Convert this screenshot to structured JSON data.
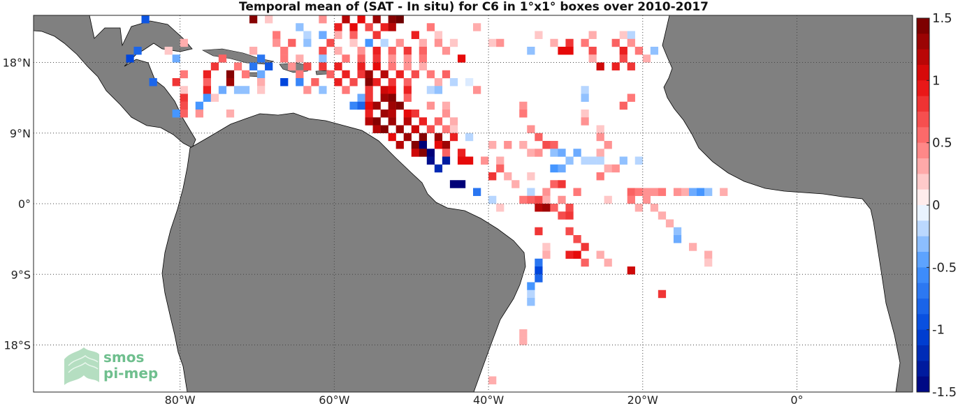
{
  "title": "Temporal mean of (SAT - In situ) for C6 in 1°x1° boxes over 2010-2017",
  "logo": {
    "line1": "smos",
    "line2": "pi-mep"
  },
  "chart_data": {
    "type": "heatmap",
    "title": "Temporal mean of (SAT - In situ) for C6 in 1°x1° boxes over 2010-2017",
    "xlim": [
      -99,
      15
    ],
    "ylim": [
      -24,
      24
    ],
    "x_ticks": [
      {
        "value": -80,
        "label": "80°W"
      },
      {
        "value": -60,
        "label": "60°W"
      },
      {
        "value": -40,
        "label": "40°W"
      },
      {
        "value": -20,
        "label": "20°W"
      },
      {
        "value": 0,
        "label": "0°"
      }
    ],
    "y_ticks": [
      {
        "value": 18,
        "label": "18°N"
      },
      {
        "value": 9,
        "label": "9°N"
      },
      {
        "value": 0,
        "label": "0°"
      },
      {
        "value": -9,
        "label": "9°S"
      },
      {
        "value": -18,
        "label": "18°S"
      }
    ],
    "grid": true,
    "colorbar": {
      "min": -1.5,
      "max": 1.5,
      "ticks": [
        {
          "value": 1.5,
          "label": "1.5"
        },
        {
          "value": 1,
          "label": "1"
        },
        {
          "value": 0.5,
          "label": "0.5"
        },
        {
          "value": 0,
          "label": "0"
        },
        {
          "value": -0.5,
          "label": "-0.5"
        },
        {
          "value": -1,
          "label": "-1"
        },
        {
          "value": -1.5,
          "label": "-1.5"
        }
      ]
    },
    "colors": {
      "land": "#808080",
      "ocean": "#ffffff",
      "grid": "#444444"
    },
    "cells": [
      [
        -71,
        23,
        1.4
      ],
      [
        -59,
        23,
        1.2
      ],
      [
        -57,
        23,
        1.0
      ],
      [
        -55,
        23,
        1.3
      ],
      [
        -53,
        23,
        1.4
      ],
      [
        -52,
        23,
        1.5
      ],
      [
        -62,
        23,
        0.4
      ],
      [
        -85,
        23,
        -0.9
      ],
      [
        -69,
        23,
        0.2
      ],
      [
        -60,
        22,
        0.9
      ],
      [
        -58,
        22,
        1.0
      ],
      [
        -56,
        22,
        0.7
      ],
      [
        -54,
        22,
        0.9
      ],
      [
        -53,
        22,
        1.2
      ],
      [
        -65,
        22,
        -0.3
      ],
      [
        -48,
        22,
        0.5
      ],
      [
        -42,
        22,
        0.3
      ],
      [
        -68,
        21,
        0.5
      ],
      [
        -64,
        21,
        -0.2
      ],
      [
        -62,
        21,
        -0.4
      ],
      [
        -60,
        21,
        0.3
      ],
      [
        -58,
        21,
        0.6
      ],
      [
        -55,
        21,
        0.8
      ],
      [
        -50,
        21,
        0.9
      ],
      [
        -47,
        21,
        0.2
      ],
      [
        -34,
        21,
        0.2
      ],
      [
        -27,
        21,
        0.3
      ],
      [
        -23,
        21,
        0.2
      ],
      [
        -22,
        21,
        -0.2
      ],
      [
        -80,
        20,
        0.3
      ],
      [
        -68,
        20,
        0.4
      ],
      [
        -66,
        20,
        0.6
      ],
      [
        -64,
        20,
        -0.3
      ],
      [
        -61,
        20,
        0.7
      ],
      [
        -58,
        20,
        0.2
      ],
      [
        -56,
        20,
        -0.5
      ],
      [
        -54,
        20,
        -0.2
      ],
      [
        -52,
        20,
        0.4
      ],
      [
        -49,
        20,
        0.3
      ],
      [
        -47,
        20,
        0.4
      ],
      [
        -45,
        20,
        0.2
      ],
      [
        -40,
        20,
        0.2
      ],
      [
        -39,
        20,
        0.4
      ],
      [
        -32,
        20,
        0.3
      ],
      [
        -30,
        20,
        0.8
      ],
      [
        -28,
        20,
        0.5
      ],
      [
        -24,
        20,
        0.6
      ],
      [
        -22,
        20,
        0.4
      ],
      [
        -86,
        19,
        -0.8
      ],
      [
        -82,
        19,
        0.2
      ],
      [
        -71,
        19,
        0.3
      ],
      [
        -67,
        19,
        0.5
      ],
      [
        -62,
        19,
        0.7
      ],
      [
        -60,
        19,
        0.3
      ],
      [
        -57,
        19,
        0.4
      ],
      [
        -55,
        19,
        0.9
      ],
      [
        -53,
        19,
        0.6
      ],
      [
        -51,
        19,
        0.8
      ],
      [
        -49,
        19,
        0.6
      ],
      [
        -46,
        19,
        0.4
      ],
      [
        -35,
        19,
        -0.3
      ],
      [
        -31,
        19,
        1.0
      ],
      [
        -30,
        19,
        1.0
      ],
      [
        -27,
        19,
        0.7
      ],
      [
        -23,
        19,
        0.9
      ],
      [
        -21,
        19,
        0.5
      ],
      [
        -19,
        19,
        -0.3
      ],
      [
        -87,
        18,
        -1.0
      ],
      [
        -81,
        18,
        -0.4
      ],
      [
        -75,
        18,
        0.6
      ],
      [
        -70,
        18,
        -0.7
      ],
      [
        -67,
        18,
        0.5
      ],
      [
        -65,
        18,
        0.3
      ],
      [
        -62,
        18,
        -0.3
      ],
      [
        -59,
        18,
        0.5
      ],
      [
        -57,
        18,
        0.6
      ],
      [
        -55,
        18,
        0.8
      ],
      [
        -53,
        18,
        0.4
      ],
      [
        -51,
        18,
        0.4
      ],
      [
        -49,
        18,
        0.5
      ],
      [
        -44,
        18,
        1.0
      ],
      [
        -27,
        18,
        0.3
      ],
      [
        -23,
        18,
        0.7
      ],
      [
        -20,
        18,
        0.3
      ],
      [
        -76,
        17,
        0.8
      ],
      [
        -73,
        17,
        0.5
      ],
      [
        -71,
        17,
        -0.7
      ],
      [
        -69,
        17,
        -0.9
      ],
      [
        -66,
        17,
        0.4
      ],
      [
        -64,
        17,
        0.7
      ],
      [
        -62,
        17,
        0.8
      ],
      [
        -60,
        17,
        0.9
      ],
      [
        -57,
        17,
        0.9
      ],
      [
        -55,
        17,
        1.0
      ],
      [
        -53,
        17,
        0.5
      ],
      [
        -51,
        17,
        0.4
      ],
      [
        -49,
        17,
        0.3
      ],
      [
        -26,
        17,
        1.1
      ],
      [
        -24,
        17,
        0.9
      ],
      [
        -22,
        17,
        0.8
      ],
      [
        -80,
        16,
        0.5
      ],
      [
        -77,
        16,
        0.9
      ],
      [
        -74,
        16,
        1.4
      ],
      [
        -72,
        16,
        0.5
      ],
      [
        -70,
        16,
        -0.4
      ],
      [
        -65,
        16,
        0.5
      ],
      [
        -61,
        16,
        0.6
      ],
      [
        -59,
        16,
        0.9
      ],
      [
        -57,
        16,
        0.8
      ],
      [
        -56,
        16,
        1.3
      ],
      [
        -54,
        16,
        1.2
      ],
      [
        -52,
        16,
        0.9
      ],
      [
        -50,
        16,
        0.7
      ],
      [
        -48,
        16,
        0.5
      ],
      [
        -46,
        16,
        0.6
      ],
      [
        -84,
        15,
        -0.8
      ],
      [
        -81,
        15,
        0.8
      ],
      [
        -77,
        15,
        0.6
      ],
      [
        -74,
        15,
        1.3
      ],
      [
        -70,
        15,
        0.3
      ],
      [
        -67,
        15,
        -1.0
      ],
      [
        -65,
        15,
        -0.6
      ],
      [
        -63,
        15,
        0.6
      ],
      [
        -60,
        15,
        0.9
      ],
      [
        -58,
        15,
        0.7
      ],
      [
        -56,
        15,
        1.4
      ],
      [
        -55,
        15,
        0.9
      ],
      [
        -53,
        15,
        0.8
      ],
      [
        -51,
        15,
        0.6
      ],
      [
        -47,
        15,
        0.3
      ],
      [
        -45,
        15,
        -0.2
      ],
      [
        -43,
        15,
        -0.1
      ],
      [
        -80,
        14,
        0.2
      ],
      [
        -77,
        14,
        0.9
      ],
      [
        -75,
        14,
        -0.4
      ],
      [
        -73,
        14,
        -0.3
      ],
      [
        -72,
        14,
        -0.3
      ],
      [
        -70,
        14,
        0.2
      ],
      [
        -64,
        14,
        0.4
      ],
      [
        -62,
        14,
        -0.3
      ],
      [
        -59,
        14,
        0.5
      ],
      [
        -56,
        14,
        0.8
      ],
      [
        -54,
        14,
        1.1
      ],
      [
        -53,
        14,
        1.0
      ],
      [
        -51,
        14,
        0.9
      ],
      [
        -48,
        14,
        -0.2
      ],
      [
        -47,
        14,
        -0.3
      ],
      [
        -42,
        14,
        0.4
      ],
      [
        -28,
        14,
        -0.2
      ],
      [
        -80,
        13,
        0.8
      ],
      [
        -77,
        13,
        -0.5
      ],
      [
        -76,
        13,
        0.2
      ],
      [
        -57,
        13,
        -0.4
      ],
      [
        -56,
        13,
        0.8
      ],
      [
        -54,
        13,
        1.3
      ],
      [
        -53,
        13,
        1.4
      ],
      [
        -51,
        13,
        0.6
      ],
      [
        -28,
        13,
        -0.3
      ],
      [
        -22,
        13,
        0.5
      ],
      [
        -80,
        12,
        0.7
      ],
      [
        -78,
        12,
        -0.5
      ],
      [
        -58,
        12,
        -0.6
      ],
      [
        -57,
        12,
        -0.8
      ],
      [
        -56,
        12,
        1.0
      ],
      [
        -55,
        12,
        1.3
      ],
      [
        -53,
        12,
        1.3
      ],
      [
        -52,
        12,
        1.4
      ],
      [
        -48,
        12,
        0.4
      ],
      [
        -46,
        12,
        0.3
      ],
      [
        -36,
        12,
        0.4
      ],
      [
        -23,
        12,
        0.6
      ],
      [
        -80,
        11,
        0.6
      ],
      [
        -81,
        11,
        -0.5
      ],
      [
        -78,
        11,
        0.4
      ],
      [
        -74,
        11,
        0.3
      ],
      [
        -56,
        11,
        0.9
      ],
      [
        -54,
        11,
        1.3
      ],
      [
        -53,
        11,
        1.2
      ],
      [
        -51,
        11,
        1.0
      ],
      [
        -50,
        11,
        0.8
      ],
      [
        -46,
        11,
        0.4
      ],
      [
        -36,
        11,
        0.5
      ],
      [
        -28,
        11,
        0.2
      ],
      [
        -56,
        10,
        1.2
      ],
      [
        -55,
        10,
        1.4
      ],
      [
        -53,
        10,
        1.3
      ],
      [
        -51,
        10,
        1.2
      ],
      [
        -49,
        10,
        0.9
      ],
      [
        -47,
        10,
        0.6
      ],
      [
        -45,
        10,
        0.3
      ],
      [
        -28,
        10,
        0.4
      ],
      [
        -55,
        9,
        1.2
      ],
      [
        -54,
        9,
        1.4
      ],
      [
        -52,
        9,
        1.3
      ],
      [
        -50,
        9,
        1.1
      ],
      [
        -48,
        9,
        0.7
      ],
      [
        -46,
        9,
        0.5
      ],
      [
        -45,
        9,
        0.2
      ],
      [
        -35,
        9,
        0.4
      ],
      [
        -26,
        9,
        0.2
      ],
      [
        -53,
        8,
        1.0
      ],
      [
        -51,
        8,
        1.3
      ],
      [
        -49,
        8,
        1.4
      ],
      [
        -47,
        8,
        1.3
      ],
      [
        -45,
        8,
        0.9
      ],
      [
        -43,
        8,
        -0.2
      ],
      [
        -34,
        8,
        0.6
      ],
      [
        -26,
        8,
        0.4
      ],
      [
        -52,
        7,
        1.2
      ],
      [
        -50,
        7,
        1.4
      ],
      [
        -49,
        7,
        -1.5
      ],
      [
        -47,
        7,
        1.0
      ],
      [
        -46,
        7,
        1.3
      ],
      [
        -40,
        7,
        0.3
      ],
      [
        -38,
        7,
        0.4
      ],
      [
        -36,
        7,
        0.3
      ],
      [
        -33,
        7,
        0.7
      ],
      [
        -32,
        7,
        0.6
      ],
      [
        -25,
        7,
        0.4
      ],
      [
        -50,
        6,
        1.1
      ],
      [
        -49,
        6,
        1.4
      ],
      [
        -48,
        6,
        -1.5
      ],
      [
        -46,
        6,
        0.6
      ],
      [
        -44,
        6,
        0.9
      ],
      [
        -35,
        6,
        0.3
      ],
      [
        -34,
        6,
        0.4
      ],
      [
        -32,
        6,
        -0.3
      ],
      [
        -31,
        6,
        -0.4
      ],
      [
        -29,
        6,
        -0.4
      ],
      [
        -26,
        6,
        0.3
      ],
      [
        -48,
        5,
        -1.4
      ],
      [
        -46,
        5,
        -1.3
      ],
      [
        -44,
        5,
        1.0
      ],
      [
        -43,
        5,
        1.0
      ],
      [
        -41,
        5,
        0.4
      ],
      [
        -39,
        5,
        0.3
      ],
      [
        -30,
        5,
        -0.3
      ],
      [
        -28,
        5,
        -0.2
      ],
      [
        -27,
        5,
        -0.2
      ],
      [
        -26,
        5,
        -0.2
      ],
      [
        -23,
        5,
        -0.3
      ],
      [
        -21,
        5,
        -0.2
      ],
      [
        -47,
        4,
        -1.2
      ],
      [
        -39,
        4,
        0.6
      ],
      [
        -32,
        4,
        -0.5
      ],
      [
        -31,
        4,
        -0.4
      ],
      [
        -25,
        4,
        0.3
      ],
      [
        -24,
        4,
        0.4
      ],
      [
        -40,
        3,
        0.8
      ],
      [
        -38,
        3,
        0.3
      ],
      [
        -35,
        3,
        0.2
      ],
      [
        -26,
        3,
        0.5
      ],
      [
        -45,
        2,
        -1.5
      ],
      [
        -44,
        2,
        -1.5
      ],
      [
        -37,
        2,
        0.3
      ],
      [
        -32,
        2,
        0.6
      ],
      [
        -31,
        2,
        0.8
      ],
      [
        -42,
        1,
        -0.7
      ],
      [
        -35,
        1,
        -0.2
      ],
      [
        -33,
        1,
        0.4
      ],
      [
        -29,
        1,
        0.5
      ],
      [
        -22,
        1,
        0.6
      ],
      [
        -21,
        1,
        0.5
      ],
      [
        -20,
        1,
        0.4
      ],
      [
        -19,
        1,
        0.4
      ],
      [
        -18,
        1,
        0.5
      ],
      [
        -16,
        1,
        0.4
      ],
      [
        -15,
        1,
        0.3
      ],
      [
        -14,
        1,
        -0.4
      ],
      [
        -13,
        1,
        -0.5
      ],
      [
        -12,
        1,
        -0.3
      ],
      [
        -10,
        1,
        0.3
      ],
      [
        -40,
        0,
        -0.2
      ],
      [
        -36,
        0,
        0.5
      ],
      [
        -35,
        0,
        0.6
      ],
      [
        -34,
        0,
        0.7
      ],
      [
        -33,
        0,
        0.3
      ],
      [
        -31,
        0,
        0.4
      ],
      [
        -25,
        0,
        0.2
      ],
      [
        -22,
        0,
        0.5
      ],
      [
        -20,
        0,
        0.4
      ],
      [
        -39,
        -1,
        0.2
      ],
      [
        -34,
        -1,
        1.2
      ],
      [
        -33,
        -1,
        1.3
      ],
      [
        -32,
        -1,
        0.6
      ],
      [
        -30,
        -1,
        0.7
      ],
      [
        -21,
        -1,
        0.3
      ],
      [
        -19,
        -1,
        0.3
      ],
      [
        -31,
        -2,
        0.7
      ],
      [
        -30,
        -2,
        0.8
      ],
      [
        -18,
        -2,
        0.3
      ],
      [
        -17,
        -3,
        0.3
      ],
      [
        -34,
        -4,
        0.8
      ],
      [
        -30,
        -4,
        0.7
      ],
      [
        -16,
        -4,
        -0.3
      ],
      [
        -29,
        -5,
        0.7
      ],
      [
        -16,
        -5,
        -0.4
      ],
      [
        -33,
        -6,
        0.2
      ],
      [
        -28,
        -6,
        0.8
      ],
      [
        -14,
        -6,
        0.3
      ],
      [
        -33,
        -7,
        0.3
      ],
      [
        -30,
        -7,
        0.9
      ],
      [
        -29,
        -7,
        1.0
      ],
      [
        -26,
        -7,
        0.3
      ],
      [
        -12,
        -7,
        0.3
      ],
      [
        -34,
        -8,
        -0.7
      ],
      [
        -28,
        -8,
        0.6
      ],
      [
        -25,
        -8,
        0.3
      ],
      [
        -12,
        -8,
        0.2
      ],
      [
        -34,
        -9,
        -1.0
      ],
      [
        -22,
        -9,
        1.1
      ],
      [
        -34,
        -10,
        -0.8
      ],
      [
        -35,
        -11,
        -0.5
      ],
      [
        -35,
        -12,
        -0.2
      ],
      [
        -18,
        -12,
        0.8
      ],
      [
        -35,
        -13,
        -0.3
      ],
      [
        -36,
        -17,
        0.3
      ],
      [
        -36,
        -18,
        0.3
      ],
      [
        -40,
        -23,
        0.3
      ]
    ]
  }
}
